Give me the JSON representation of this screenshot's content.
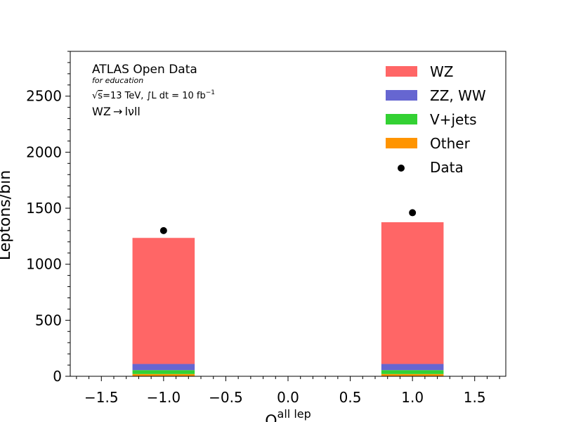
{
  "chart_data": {
    "type": "bar",
    "stacked": true,
    "xlabel_main": "Q",
    "xlabel_sup": "all lep",
    "ylabel": "Leptons/bin",
    "xlim": [
      -1.75,
      1.75
    ],
    "ylim": [
      0,
      2900
    ],
    "xticks": [
      -1.5,
      -1.0,
      -0.5,
      0.0,
      0.5,
      1.0,
      1.5
    ],
    "xtick_labels": [
      "−1.5",
      "−1.0",
      "−0.5",
      "0.0",
      "0.5",
      "1.0",
      "1.5"
    ],
    "yticks": [
      0,
      500,
      1000,
      1500,
      2000,
      2500
    ],
    "ytick_labels": [
      "0",
      "500",
      "1000",
      "1500",
      "2000",
      "2500"
    ],
    "bins": [
      {
        "x0": -1.25,
        "x1": -0.75,
        "center": -1.0
      },
      {
        "x0": 0.75,
        "x1": 1.25,
        "center": 1.0
      }
    ],
    "series": [
      {
        "name": "Other",
        "color": "#ff9400",
        "values": [
          20,
          20
        ]
      },
      {
        "name": "V+jets",
        "color": "#33d133",
        "values": [
          35,
          35
        ]
      },
      {
        "name": "ZZ, WW",
        "color": "#6666d1",
        "values": [
          55,
          55
        ]
      },
      {
        "name": "WZ",
        "color": "#ff6666",
        "values": [
          1125,
          1265
        ]
      }
    ],
    "data_points": {
      "name": "Data",
      "x": [
        -1.0,
        1.0
      ],
      "y": [
        1300,
        1460
      ]
    },
    "legend": {
      "placement": "top-right",
      "entries": [
        {
          "label": "WZ",
          "kind": "patch",
          "color": "#ff6666"
        },
        {
          "label": "ZZ, WW",
          "kind": "patch",
          "color": "#6666d1"
        },
        {
          "label": "V+jets",
          "kind": "patch",
          "color": "#33d133"
        },
        {
          "label": "Other",
          "kind": "patch",
          "color": "#ff9400"
        },
        {
          "label": "Data",
          "kind": "marker",
          "color": "#000000"
        }
      ]
    },
    "annotations": {
      "title": "ATLAS Open Data",
      "subtitle": "for education",
      "energy_prefix": "=13 TeV, ",
      "lumi_text": "L dt = 10 fb",
      "lumi_exp": "−1",
      "channel": "WZ → lνll"
    }
  }
}
